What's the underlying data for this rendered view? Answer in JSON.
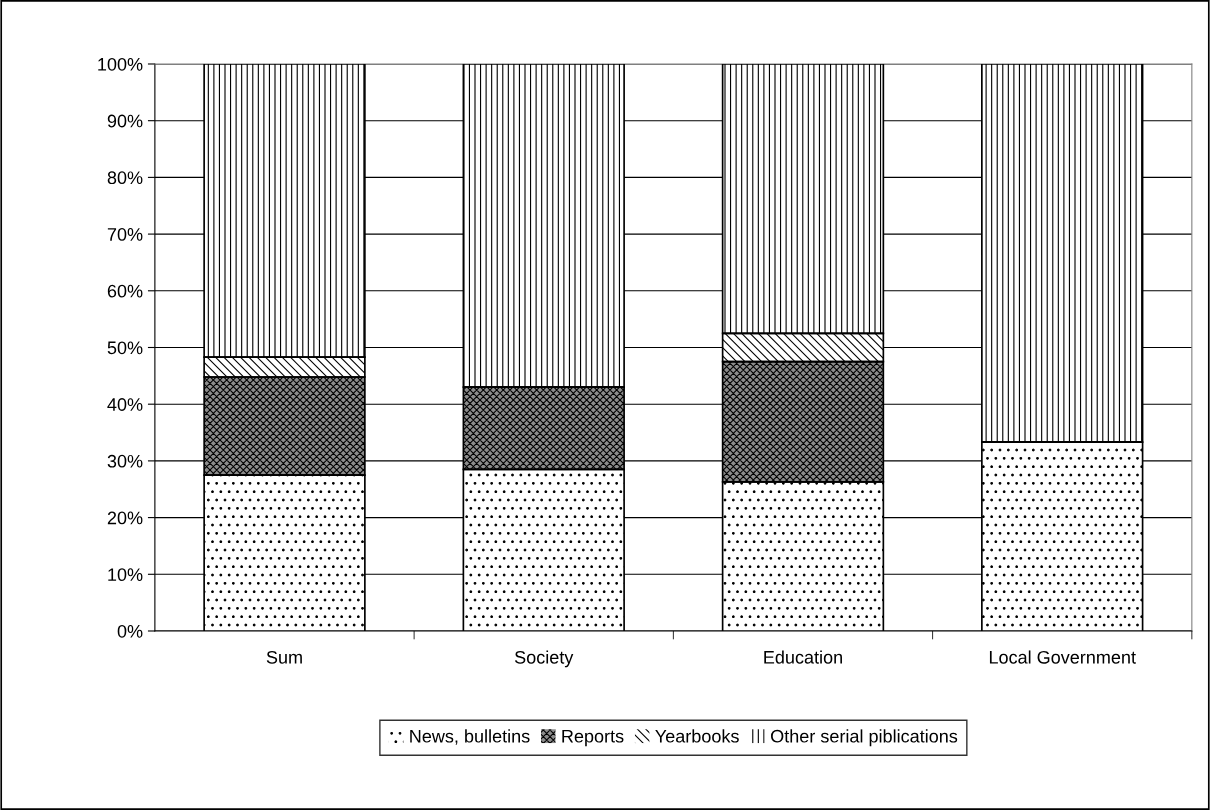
{
  "chart_data": {
    "type": "bar",
    "stacked": true,
    "categories": [
      "Sum",
      "Society",
      "Education",
      "Local Government"
    ],
    "series": [
      {
        "name": "News, bulletins",
        "color": "#ffffff",
        "values": [
          27.5,
          28.5,
          26.3,
          33.3
        ]
      },
      {
        "name": "Reports",
        "color": "#8c8c8c",
        "values": [
          17.3,
          14.5,
          21.2,
          0
        ]
      },
      {
        "name": "Yearbooks",
        "color": "#ffffff",
        "values": [
          3.5,
          0,
          5.0,
          0
        ]
      },
      {
        "name": "Other serial piblications",
        "color": "#ffffff",
        "values": [
          51.7,
          57.0,
          47.5,
          66.7
        ]
      }
    ],
    "ylim": [
      0,
      100
    ],
    "yticks": [
      {
        "value": 0,
        "label": "0%"
      },
      {
        "value": 10,
        "label": "10%"
      },
      {
        "value": 20,
        "label": "20%"
      },
      {
        "value": 30,
        "label": "30%"
      },
      {
        "value": 40,
        "label": "40%"
      },
      {
        "value": 50,
        "label": "50%"
      },
      {
        "value": 60,
        "label": "60%"
      },
      {
        "value": 70,
        "label": "70%"
      },
      {
        "value": 80,
        "label": "80%"
      },
      {
        "value": 90,
        "label": "90%"
      },
      {
        "value": 100,
        "label": "100%"
      }
    ],
    "grid": "y",
    "legend": "bottom"
  }
}
